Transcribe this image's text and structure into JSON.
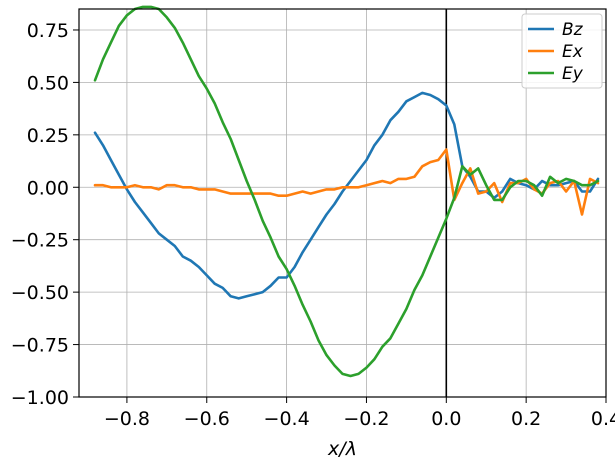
{
  "chart_data": {
    "type": "line",
    "title": "",
    "xlabel": "x/λ",
    "ylabel": "",
    "xlim": [
      -0.92,
      0.4
    ],
    "ylim": [
      -1.0,
      0.85
    ],
    "grid": true,
    "legend_position": "top-right",
    "x_ticks": [
      -0.8,
      -0.6,
      -0.4,
      -0.2,
      0.0,
      0.2,
      0.4
    ],
    "x_tick_labels": [
      "−0.8",
      "−0.6",
      "−0.4",
      "−0.2",
      "0.0",
      "0.2",
      "0.4"
    ],
    "y_ticks": [
      0.75,
      0.5,
      0.25,
      0.0,
      -0.25,
      -0.5,
      -0.75,
      -1.0
    ],
    "y_tick_labels": [
      "0.75",
      "0.50",
      "0.25",
      "0.00",
      "−0.25",
      "−0.50",
      "−0.75",
      "−1.00"
    ],
    "vline_x": 0.0,
    "series": [
      {
        "name": "Bz",
        "color": "#1f77b4",
        "points": [
          [
            -0.88,
            0.26
          ],
          [
            -0.86,
            0.2
          ],
          [
            -0.84,
            0.13
          ],
          [
            -0.82,
            0.06
          ],
          [
            -0.8,
            -0.01
          ],
          [
            -0.78,
            -0.07
          ],
          [
            -0.76,
            -0.12
          ],
          [
            -0.74,
            -0.17
          ],
          [
            -0.72,
            -0.22
          ],
          [
            -0.7,
            -0.25
          ],
          [
            -0.68,
            -0.28
          ],
          [
            -0.66,
            -0.33
          ],
          [
            -0.64,
            -0.35
          ],
          [
            -0.62,
            -0.38
          ],
          [
            -0.6,
            -0.42
          ],
          [
            -0.58,
            -0.46
          ],
          [
            -0.56,
            -0.48
          ],
          [
            -0.54,
            -0.52
          ],
          [
            -0.52,
            -0.53
          ],
          [
            -0.5,
            -0.52
          ],
          [
            -0.48,
            -0.51
          ],
          [
            -0.46,
            -0.5
          ],
          [
            -0.44,
            -0.47
          ],
          [
            -0.42,
            -0.43
          ],
          [
            -0.4,
            -0.43
          ],
          [
            -0.38,
            -0.38
          ],
          [
            -0.36,
            -0.31
          ],
          [
            -0.34,
            -0.25
          ],
          [
            -0.32,
            -0.19
          ],
          [
            -0.3,
            -0.13
          ],
          [
            -0.28,
            -0.08
          ],
          [
            -0.26,
            -0.02
          ],
          [
            -0.24,
            0.03
          ],
          [
            -0.22,
            0.08
          ],
          [
            -0.2,
            0.13
          ],
          [
            -0.18,
            0.2
          ],
          [
            -0.16,
            0.25
          ],
          [
            -0.14,
            0.32
          ],
          [
            -0.12,
            0.36
          ],
          [
            -0.1,
            0.41
          ],
          [
            -0.08,
            0.43
          ],
          [
            -0.06,
            0.45
          ],
          [
            -0.04,
            0.44
          ],
          [
            -0.02,
            0.42
          ],
          [
            0.0,
            0.39
          ],
          [
            0.02,
            0.3
          ],
          [
            0.04,
            0.1
          ],
          [
            0.06,
            0.05
          ],
          [
            0.08,
            -0.02
          ],
          [
            0.1,
            -0.02
          ],
          [
            0.12,
            -0.05
          ],
          [
            0.14,
            -0.02
          ],
          [
            0.16,
            0.04
          ],
          [
            0.18,
            0.02
          ],
          [
            0.2,
            0.01
          ],
          [
            0.22,
            -0.01
          ],
          [
            0.24,
            0.03
          ],
          [
            0.26,
            0.01
          ],
          [
            0.28,
            0.01
          ],
          [
            0.3,
            0.02
          ],
          [
            0.32,
            0.03
          ],
          [
            0.34,
            -0.02
          ],
          [
            0.36,
            -0.02
          ],
          [
            0.38,
            0.04
          ]
        ]
      },
      {
        "name": "Ex",
        "color": "#ff7f0e",
        "points": [
          [
            -0.88,
            0.01
          ],
          [
            -0.86,
            0.01
          ],
          [
            -0.84,
            0.0
          ],
          [
            -0.82,
            0.0
          ],
          [
            -0.8,
            0.0
          ],
          [
            -0.78,
            0.01
          ],
          [
            -0.76,
            0.0
          ],
          [
            -0.74,
            0.0
          ],
          [
            -0.72,
            -0.01
          ],
          [
            -0.7,
            0.01
          ],
          [
            -0.68,
            0.01
          ],
          [
            -0.66,
            0.0
          ],
          [
            -0.64,
            0.0
          ],
          [
            -0.62,
            -0.01
          ],
          [
            -0.6,
            -0.01
          ],
          [
            -0.58,
            -0.01
          ],
          [
            -0.56,
            -0.02
          ],
          [
            -0.54,
            -0.03
          ],
          [
            -0.52,
            -0.03
          ],
          [
            -0.5,
            -0.03
          ],
          [
            -0.48,
            -0.03
          ],
          [
            -0.46,
            -0.03
          ],
          [
            -0.44,
            -0.03
          ],
          [
            -0.42,
            -0.04
          ],
          [
            -0.4,
            -0.04
          ],
          [
            -0.38,
            -0.03
          ],
          [
            -0.36,
            -0.02
          ],
          [
            -0.34,
            -0.03
          ],
          [
            -0.32,
            -0.02
          ],
          [
            -0.3,
            -0.01
          ],
          [
            -0.28,
            -0.01
          ],
          [
            -0.26,
            0.0
          ],
          [
            -0.24,
            0.0
          ],
          [
            -0.22,
            0.0
          ],
          [
            -0.2,
            0.01
          ],
          [
            -0.18,
            0.02
          ],
          [
            -0.16,
            0.03
          ],
          [
            -0.14,
            0.02
          ],
          [
            -0.12,
            0.04
          ],
          [
            -0.1,
            0.04
          ],
          [
            -0.08,
            0.05
          ],
          [
            -0.06,
            0.1
          ],
          [
            -0.04,
            0.12
          ],
          [
            -0.02,
            0.13
          ],
          [
            0.0,
            0.18
          ],
          [
            0.02,
            -0.06
          ],
          [
            0.04,
            0.02
          ],
          [
            0.06,
            0.09
          ],
          [
            0.08,
            -0.03
          ],
          [
            0.1,
            -0.02
          ],
          [
            0.12,
            0.02
          ],
          [
            0.14,
            -0.07
          ],
          [
            0.16,
            0.02
          ],
          [
            0.18,
            0.02
          ],
          [
            0.2,
            0.04
          ],
          [
            0.22,
            -0.01
          ],
          [
            0.24,
            -0.03
          ],
          [
            0.26,
            0.02
          ],
          [
            0.28,
            0.03
          ],
          [
            0.3,
            -0.02
          ],
          [
            0.32,
            0.03
          ],
          [
            0.34,
            -0.13
          ],
          [
            0.36,
            0.04
          ],
          [
            0.38,
            0.02
          ]
        ]
      },
      {
        "name": "Ey",
        "color": "#2ca02c",
        "points": [
          [
            -0.88,
            0.51
          ],
          [
            -0.86,
            0.61
          ],
          [
            -0.84,
            0.69
          ],
          [
            -0.82,
            0.77
          ],
          [
            -0.8,
            0.82
          ],
          [
            -0.78,
            0.85
          ],
          [
            -0.76,
            0.86
          ],
          [
            -0.74,
            0.86
          ],
          [
            -0.72,
            0.85
          ],
          [
            -0.7,
            0.81
          ],
          [
            -0.68,
            0.76
          ],
          [
            -0.66,
            0.69
          ],
          [
            -0.64,
            0.61
          ],
          [
            -0.62,
            0.53
          ],
          [
            -0.6,
            0.47
          ],
          [
            -0.58,
            0.4
          ],
          [
            -0.56,
            0.31
          ],
          [
            -0.54,
            0.23
          ],
          [
            -0.52,
            0.13
          ],
          [
            -0.5,
            0.03
          ],
          [
            -0.48,
            -0.06
          ],
          [
            -0.46,
            -0.16
          ],
          [
            -0.44,
            -0.24
          ],
          [
            -0.42,
            -0.33
          ],
          [
            -0.4,
            -0.39
          ],
          [
            -0.38,
            -0.47
          ],
          [
            -0.36,
            -0.56
          ],
          [
            -0.34,
            -0.64
          ],
          [
            -0.32,
            -0.73
          ],
          [
            -0.3,
            -0.8
          ],
          [
            -0.28,
            -0.85
          ],
          [
            -0.26,
            -0.89
          ],
          [
            -0.24,
            -0.9
          ],
          [
            -0.22,
            -0.89
          ],
          [
            -0.2,
            -0.86
          ],
          [
            -0.18,
            -0.82
          ],
          [
            -0.16,
            -0.76
          ],
          [
            -0.14,
            -0.72
          ],
          [
            -0.12,
            -0.65
          ],
          [
            -0.1,
            -0.58
          ],
          [
            -0.08,
            -0.49
          ],
          [
            -0.06,
            -0.42
          ],
          [
            -0.04,
            -0.33
          ],
          [
            -0.02,
            -0.24
          ],
          [
            0.0,
            -0.15
          ],
          [
            0.02,
            -0.05
          ],
          [
            0.04,
            0.1
          ],
          [
            0.06,
            0.06
          ],
          [
            0.08,
            0.09
          ],
          [
            0.1,
            0.01
          ],
          [
            0.12,
            -0.06
          ],
          [
            0.14,
            -0.06
          ],
          [
            0.16,
            0.0
          ],
          [
            0.18,
            0.03
          ],
          [
            0.2,
            0.03
          ],
          [
            0.22,
            0.01
          ],
          [
            0.24,
            -0.04
          ],
          [
            0.26,
            0.05
          ],
          [
            0.28,
            0.02
          ],
          [
            0.3,
            0.04
          ],
          [
            0.32,
            0.03
          ],
          [
            0.34,
            0.01
          ],
          [
            0.36,
            0.01
          ],
          [
            0.38,
            0.03
          ]
        ]
      }
    ]
  }
}
